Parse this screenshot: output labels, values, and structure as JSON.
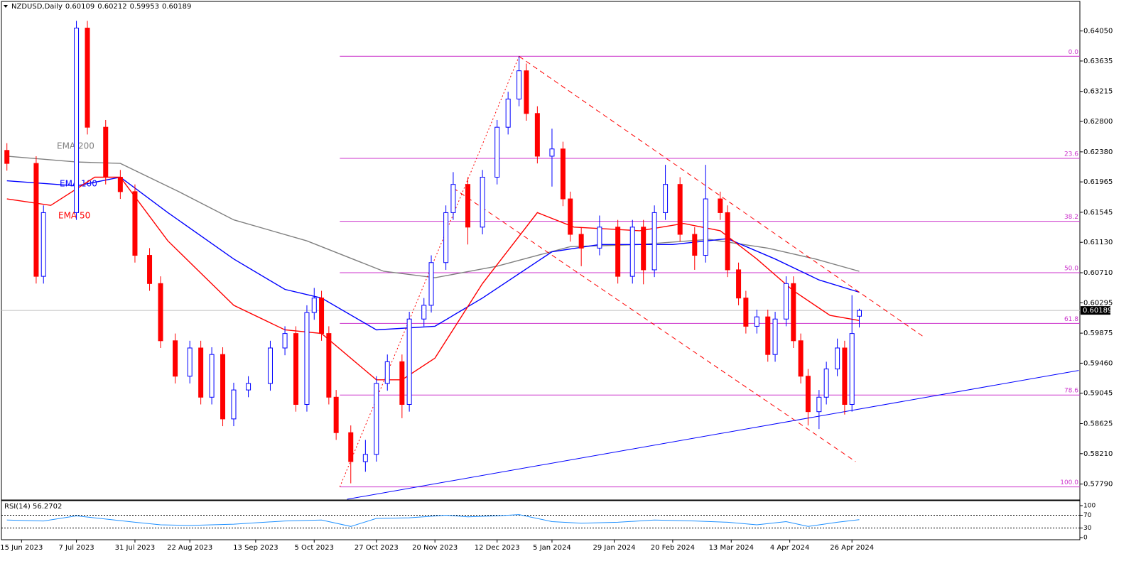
{
  "chart_data": {
    "type": "candlestick",
    "symbol": "NZDUSD,Daily",
    "ohlc": [
      0.60109,
      0.60212,
      0.59953,
      0.60189
    ],
    "xlim": [
      -1.5,
      293.3
    ],
    "ylim": [
      0.5758,
      0.6438
    ],
    "yticks": [
      {
        "value": 0.6405,
        "label": "0.64050"
      },
      {
        "value": 0.63635,
        "label": "0.63635"
      },
      {
        "value": 0.63215,
        "label": "0.63215"
      },
      {
        "value": 0.628,
        "label": "0.62800"
      },
      {
        "value": 0.6238,
        "label": "0.62380"
      },
      {
        "value": 0.61965,
        "label": "0.61965"
      },
      {
        "value": 0.61545,
        "label": "0.61545"
      },
      {
        "value": 0.6113,
        "label": "0.61130"
      },
      {
        "value": 0.6071,
        "label": "0.60710"
      },
      {
        "value": 0.60295,
        "label": "0.60295"
      },
      {
        "value": 0.59875,
        "label": "0.59875"
      },
      {
        "value": 0.5946,
        "label": "0.59460"
      },
      {
        "value": 0.59045,
        "label": "0.59045"
      },
      {
        "value": 0.58625,
        "label": "0.58625"
      },
      {
        "value": 0.5821,
        "label": "0.58210"
      },
      {
        "value": 0.5779,
        "label": "0.57790"
      }
    ],
    "xticks": [
      {
        "value": 4,
        "label": "15 Jun 2023"
      },
      {
        "value": 19,
        "label": "7 Jul 2023"
      },
      {
        "value": 35,
        "label": "31 Jul 2023"
      },
      {
        "value": 50,
        "label": "22 Aug 2023"
      },
      {
        "value": 68,
        "label": "13 Sep 2023"
      },
      {
        "value": 84,
        "label": "5 Oct 2023"
      },
      {
        "value": 101,
        "label": "27 Oct 2023"
      },
      {
        "value": 117,
        "label": "20 Nov 2023"
      },
      {
        "value": 134,
        "label": "12 Dec 2023"
      },
      {
        "value": 149,
        "label": "5 Jan 2024"
      },
      {
        "value": 166,
        "label": "29 Jan 2024"
      },
      {
        "value": 182,
        "label": "20 Feb 2024"
      },
      {
        "value": 198,
        "label": "13 Mar 2024"
      },
      {
        "value": 214,
        "label": "4 Apr 2024"
      },
      {
        "value": 231,
        "label": "26 Apr 2024"
      }
    ],
    "up_color": "#0000ff",
    "down_color": "#ff0000",
    "candles": {
      "x": [
        0,
        8,
        10,
        19,
        22,
        27,
        31,
        35,
        39,
        42,
        46,
        50,
        53,
        56,
        59,
        62,
        66,
        72,
        76,
        79,
        82,
        84,
        86,
        88,
        90,
        94,
        98,
        101,
        104,
        108,
        110,
        114,
        116,
        120,
        122,
        126,
        130,
        134,
        137,
        140,
        142,
        145,
        149,
        152,
        154,
        157,
        162,
        167,
        171,
        174,
        177,
        180,
        184,
        188,
        191,
        195,
        197,
        200,
        202,
        205,
        208,
        210,
        213,
        215,
        217,
        219,
        222,
        224,
        227,
        229,
        231,
        233
      ],
      "open": [
        0.624,
        0.6222,
        0.6066,
        0.6154,
        0.6409,
        0.6272,
        0.6203,
        0.6183,
        0.6095,
        0.6056,
        0.5977,
        0.5928,
        0.5967,
        0.5899,
        0.5958,
        0.5869,
        0.5909,
        0.5918,
        0.5967,
        0.5987,
        0.5889,
        0.6016,
        0.6036,
        0.5987,
        0.5899,
        0.585,
        0.581,
        0.582,
        0.5918,
        0.5948,
        0.5889,
        0.6007,
        0.6026,
        0.6085,
        0.6154,
        0.6193,
        0.6134,
        0.6203,
        0.6272,
        0.6311,
        0.635,
        0.6291,
        0.6232,
        0.6242,
        0.6173,
        0.6124,
        0.6105,
        0.6134,
        0.6066,
        0.6134,
        0.6075,
        0.6154,
        0.6193,
        0.6124,
        0.6095,
        0.6173,
        0.6154,
        0.6075,
        0.6036,
        0.5997,
        0.601,
        0.5958,
        0.6007,
        0.6056,
        0.5977,
        0.5928,
        0.5879,
        0.5899,
        0.5938,
        0.5967,
        0.5889,
        0.60109
      ],
      "high": [
        0.625,
        0.6232,
        0.6164,
        0.6419,
        0.6419,
        0.6282,
        0.6213,
        0.6193,
        0.6105,
        0.6066,
        0.5987,
        0.5977,
        0.5977,
        0.5968,
        0.5968,
        0.5919,
        0.5928,
        0.5977,
        0.5997,
        0.5997,
        0.6026,
        0.605,
        0.6046,
        0.5997,
        0.5909,
        0.586,
        0.584,
        0.5928,
        0.5958,
        0.5958,
        0.6017,
        0.6036,
        0.6095,
        0.6164,
        0.621,
        0.6203,
        0.6213,
        0.6282,
        0.6321,
        0.637,
        0.636,
        0.6301,
        0.627,
        0.6252,
        0.6183,
        0.6134,
        0.615,
        0.6144,
        0.6144,
        0.6144,
        0.6164,
        0.622,
        0.6203,
        0.6134,
        0.622,
        0.6183,
        0.6164,
        0.6085,
        0.6046,
        0.602,
        0.602,
        0.6017,
        0.6066,
        0.6066,
        0.5987,
        0.5938,
        0.5909,
        0.5948,
        0.598,
        0.5977,
        0.604,
        0.60212
      ],
      "low": [
        0.6212,
        0.6056,
        0.6056,
        0.6144,
        0.6262,
        0.6193,
        0.6173,
        0.6085,
        0.6046,
        0.5967,
        0.5918,
        0.5918,
        0.5889,
        0.5889,
        0.5859,
        0.5859,
        0.5899,
        0.5908,
        0.5957,
        0.5879,
        0.5879,
        0.6006,
        0.5977,
        0.5889,
        0.584,
        0.578,
        0.5796,
        0.581,
        0.5908,
        0.587,
        0.5879,
        0.5997,
        0.6016,
        0.6075,
        0.6144,
        0.611,
        0.6124,
        0.6193,
        0.6262,
        0.6301,
        0.6281,
        0.6222,
        0.619,
        0.6163,
        0.6114,
        0.608,
        0.6095,
        0.6056,
        0.6056,
        0.6055,
        0.6065,
        0.6144,
        0.6114,
        0.6075,
        0.6085,
        0.6144,
        0.6065,
        0.6026,
        0.5987,
        0.5987,
        0.5948,
        0.5948,
        0.5997,
        0.5967,
        0.5918,
        0.586,
        0.5855,
        0.5889,
        0.5928,
        0.5875,
        0.5879,
        0.59953
      ],
      "close": [
        0.6222,
        0.6066,
        0.6154,
        0.6409,
        0.6272,
        0.6203,
        0.6183,
        0.6095,
        0.6056,
        0.5977,
        0.5928,
        0.5967,
        0.5899,
        0.5958,
        0.5869,
        0.5909,
        0.5918,
        0.5967,
        0.5987,
        0.5889,
        0.6016,
        0.6036,
        0.5987,
        0.5899,
        0.585,
        0.581,
        0.582,
        0.5918,
        0.5948,
        0.5889,
        0.6007,
        0.6026,
        0.6085,
        0.6154,
        0.6193,
        0.6134,
        0.6203,
        0.6272,
        0.6311,
        0.635,
        0.6291,
        0.6232,
        0.6242,
        0.6173,
        0.6124,
        0.6105,
        0.6134,
        0.6066,
        0.6134,
        0.6075,
        0.6154,
        0.6193,
        0.6124,
        0.6095,
        0.6173,
        0.6154,
        0.6075,
        0.6036,
        0.5997,
        0.601,
        0.5958,
        0.6007,
        0.6056,
        0.5977,
        0.5928,
        0.5879,
        0.5899,
        0.5938,
        0.5967,
        0.5889,
        0.5987,
        0.60189
      ]
    },
    "emas": [
      {
        "name": "EMA 200",
        "color": "#808080",
        "x": [
          0,
          19,
          31,
          47,
          62,
          82,
          103,
          117,
          134,
          154,
          173,
          192,
          208,
          221,
          233
        ],
        "values": [
          0.6232,
          0.6224,
          0.6222,
          0.6183,
          0.6144,
          0.6115,
          0.6073,
          0.6064,
          0.608,
          0.6107,
          0.611,
          0.6117,
          0.6105,
          0.609,
          0.6073
        ]
      },
      {
        "name": "EMA 100",
        "color": "#0000ff",
        "x": [
          0,
          19,
          31,
          44,
          62,
          76,
          86,
          101,
          117,
          130,
          149,
          162,
          182,
          197,
          210,
          222,
          233
        ],
        "values": [
          0.6198,
          0.6191,
          0.6203,
          0.6154,
          0.609,
          0.6048,
          0.6036,
          0.5992,
          0.5997,
          0.6036,
          0.61,
          0.611,
          0.611,
          0.6118,
          0.609,
          0.6061,
          0.6044
        ]
      },
      {
        "name": "EMA 50",
        "color": "#ff0000",
        "x": [
          0,
          12,
          24,
          31,
          44,
          62,
          76,
          86,
          101,
          108,
          117,
          130,
          145,
          155,
          173,
          185,
          195,
          205,
          215,
          225,
          233
        ],
        "values": [
          0.6173,
          0.6164,
          0.6203,
          0.6203,
          0.6115,
          0.6026,
          0.5992,
          0.5987,
          0.5923,
          0.5923,
          0.5953,
          0.6056,
          0.6154,
          0.6134,
          0.6129,
          0.6139,
          0.6129,
          0.609,
          0.6046,
          0.6012,
          0.6005
        ]
      }
    ],
    "fib": {
      "color": "#cc33cc",
      "x_start": 91,
      "levels": [
        {
          "label": "0.0",
          "price": 0.637
        },
        {
          "label": "23.6",
          "price": 0.6229
        },
        {
          "label": "38.2",
          "price": 0.6142
        },
        {
          "label": "50.0",
          "price": 0.6071
        },
        {
          "label": "61.8",
          "price": 0.6001
        },
        {
          "label": "78.6",
          "price": 0.5902
        },
        {
          "label": "100.0",
          "price": 0.5775
        }
      ]
    },
    "trendlines": [
      {
        "x": [
          140,
          251
        ],
        "y": [
          0.637,
          0.5981
        ],
        "color": "#ff0000",
        "dash": "dashed"
      },
      {
        "x": [
          122,
          232
        ],
        "y": [
          0.6188,
          0.581
        ],
        "color": "#ff0000",
        "dash": "dashed"
      },
      {
        "x": [
          91,
          140
        ],
        "y": [
          0.5775,
          0.637
        ],
        "color": "#ff0000",
        "dash": "dotted"
      },
      {
        "x": [
          93,
          293
        ],
        "y": [
          0.5758,
          0.5936
        ],
        "color": "#0000ff",
        "dash": "solid"
      }
    ],
    "last": 0.60189,
    "rsi": {
      "label": "RSI(14)",
      "last": 56.2702,
      "color": "#1e90ff",
      "ylim": [
        0,
        100
      ],
      "yticks": [
        100,
        70,
        30,
        0
      ],
      "levels": [
        70,
        30
      ],
      "x": [
        0,
        10,
        19,
        27,
        35,
        42,
        50,
        62,
        76,
        86,
        94,
        101,
        110,
        120,
        126,
        134,
        140,
        149,
        157,
        167,
        177,
        188,
        197,
        205,
        213,
        219,
        227,
        233
      ],
      "values": [
        55,
        52,
        68,
        58,
        48,
        40,
        38,
        42,
        52,
        55,
        35,
        60,
        62,
        70,
        65,
        68,
        72,
        50,
        45,
        48,
        55,
        52,
        48,
        40,
        50,
        35,
        48,
        56.2702
      ]
    }
  }
}
